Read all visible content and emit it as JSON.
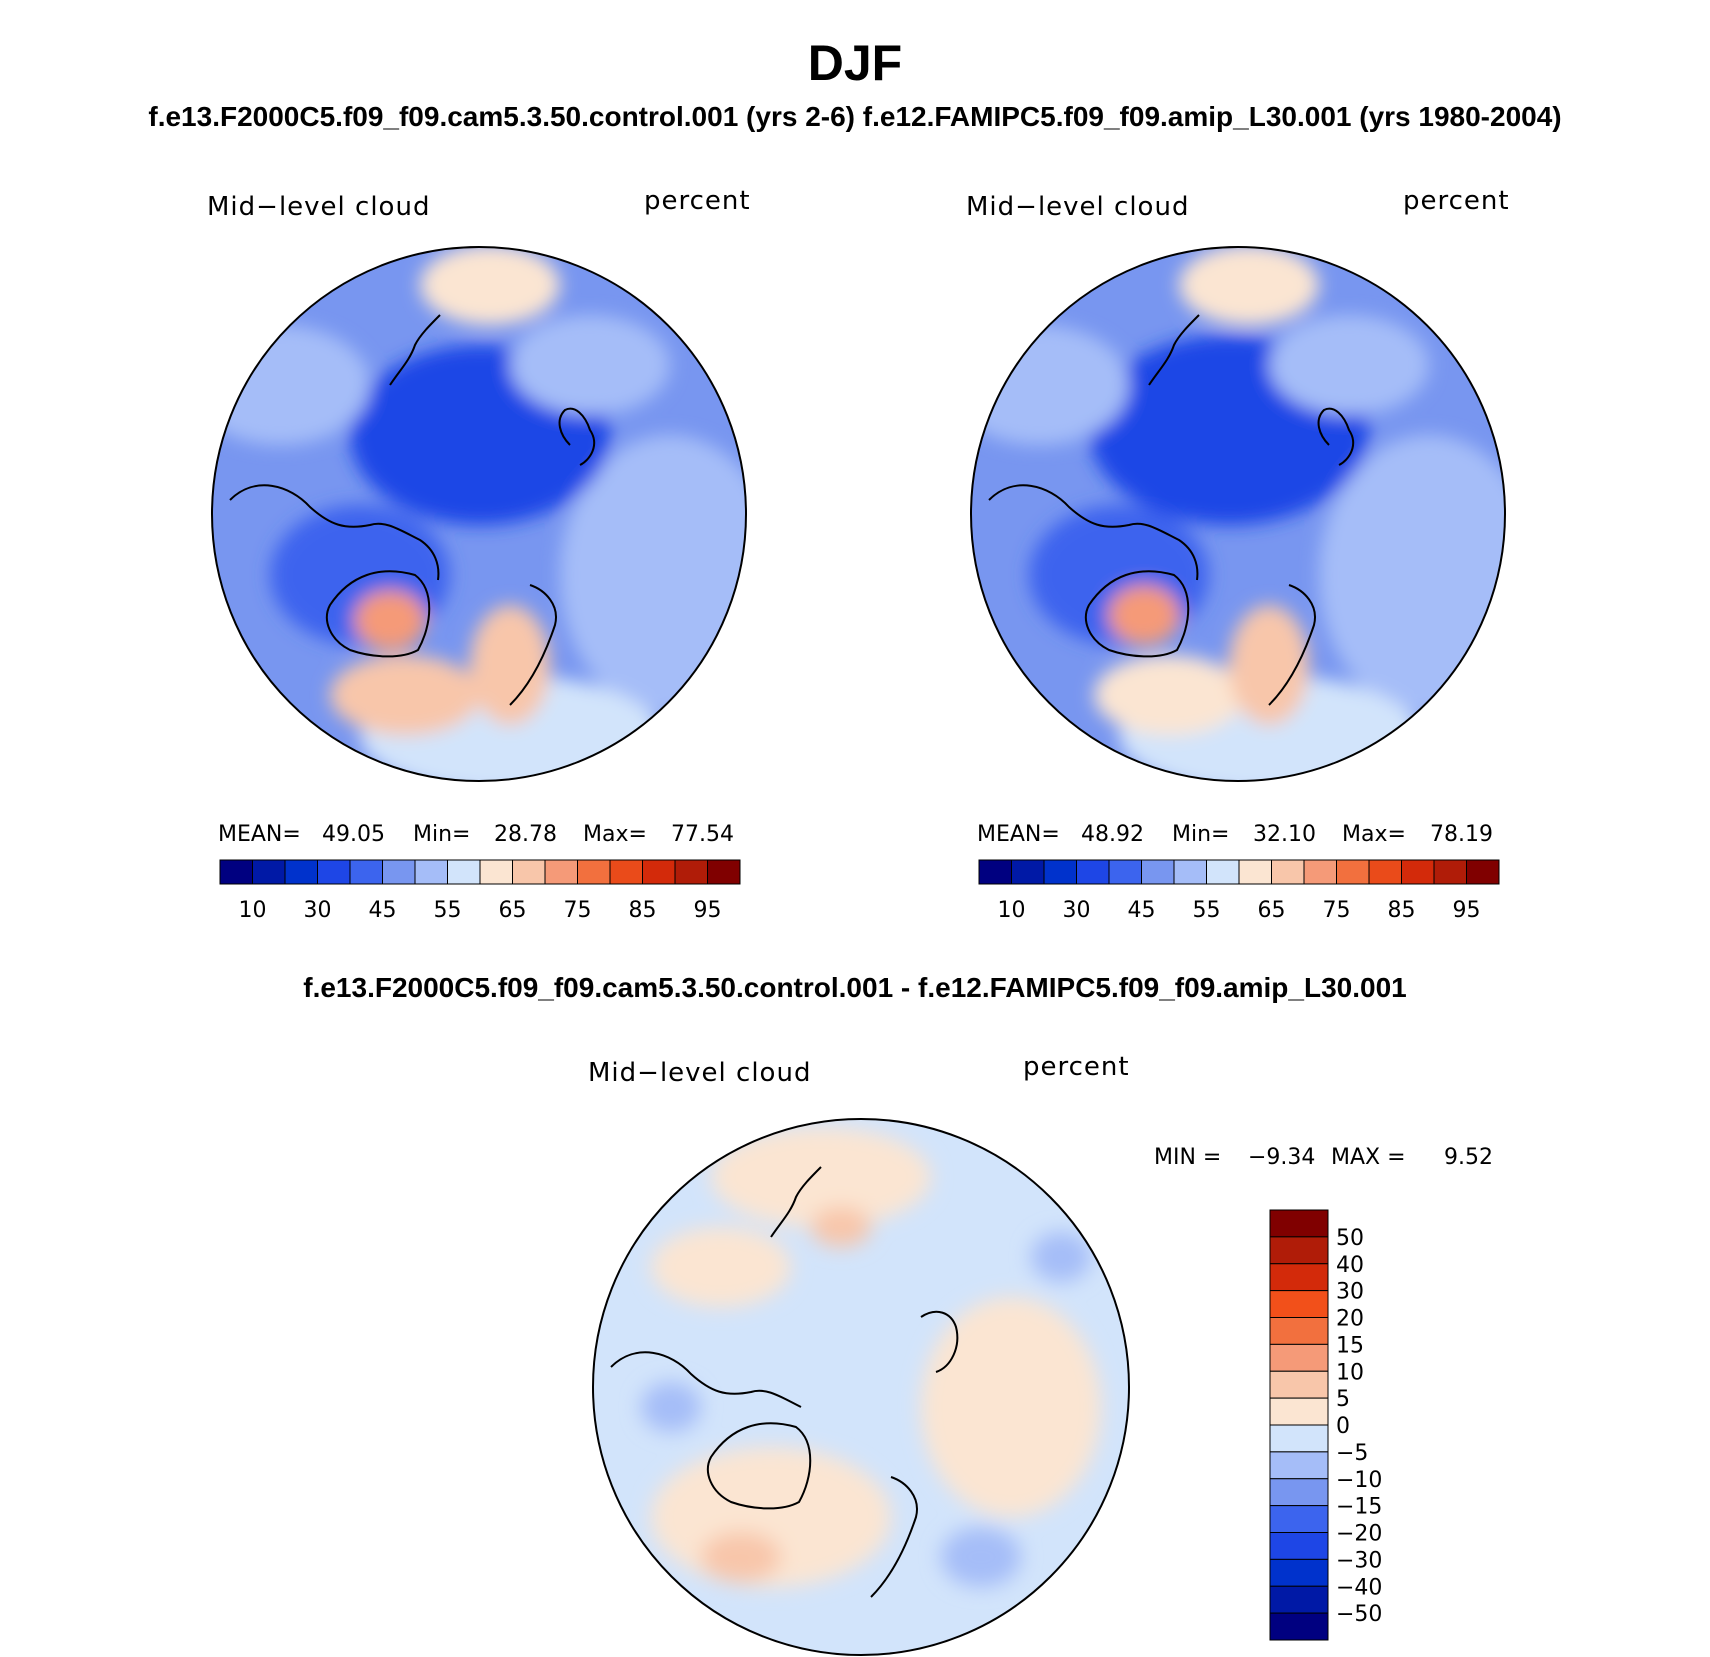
{
  "title": "DJF",
  "subtitle_top": "f.e13.F2000C5.f09_f09.cam5.3.50.control.001 (yrs 2-6)  f.e12.FAMIPC5.f09_f09.amip_L30.001 (yrs 1980-2004)",
  "subtitle_diff": "f.e13.F2000C5.f09_f09.cam5.3.50.control.001 - f.e12.FAMIPC5.f09_f09.amip_L30.001",
  "panels": [
    {
      "variable": "Mid−level cloud",
      "units": "percent",
      "mean_label": "MEAN=",
      "mean": "49.05",
      "min_label": "Min=",
      "min": "28.78",
      "max_label": "Max=",
      "max": "77.54"
    },
    {
      "variable": "Mid−level cloud",
      "units": "percent",
      "mean_label": "MEAN=",
      "mean": "48.92",
      "min_label": "Min=",
      "min": "32.10",
      "max_label": "Max=",
      "max": "78.19"
    }
  ],
  "diff_panel": {
    "variable": "Mid−level cloud",
    "units": "percent",
    "min_label": "MIN =",
    "min": "−9.34",
    "max_label": "MAX =",
    "max": "9.52"
  },
  "chart_data": [
    {
      "type": "heatmap",
      "title": "Mid-level cloud (control.001, yrs 2-6)",
      "units": "percent",
      "projection": "north polar stereographic",
      "mean": 49.05,
      "min": 28.78,
      "max": 77.54,
      "colorbar_tick_labels": [
        "10",
        "30",
        "45",
        "55",
        "65",
        "75",
        "85",
        "95"
      ],
      "colorbar_levels": [
        5,
        10,
        20,
        30,
        40,
        45,
        50,
        55,
        60,
        65,
        70,
        75,
        80,
        85,
        90,
        95
      ],
      "colors": [
        "#000080",
        "#0019A6",
        "#0032CC",
        "#1E46E6",
        "#3C64EE",
        "#7896F0",
        "#A5BDF8",
        "#D2E4FB",
        "#FBE5D2",
        "#F8C6AA",
        "#F59A78",
        "#F2703E",
        "#EA4B1A",
        "#D32A0A",
        "#B01C08",
        "#800000"
      ]
    },
    {
      "type": "heatmap",
      "title": "Mid-level cloud (amip_L30.001, yrs 1980-2004)",
      "units": "percent",
      "projection": "north polar stereographic",
      "mean": 48.92,
      "min": 32.1,
      "max": 78.19,
      "colorbar_tick_labels": [
        "10",
        "30",
        "45",
        "55",
        "65",
        "75",
        "85",
        "95"
      ],
      "colorbar_levels": [
        5,
        10,
        20,
        30,
        40,
        45,
        50,
        55,
        60,
        65,
        70,
        75,
        80,
        85,
        90,
        95
      ],
      "colors": [
        "#000080",
        "#0019A6",
        "#0032CC",
        "#1E46E6",
        "#3C64EE",
        "#7896F0",
        "#A5BDF8",
        "#D2E4FB",
        "#FBE5D2",
        "#F8C6AA",
        "#F59A78",
        "#F2703E",
        "#EA4B1A",
        "#D32A0A",
        "#B01C08",
        "#800000"
      ]
    },
    {
      "type": "heatmap",
      "title": "Mid-level cloud difference (control.001 - amip_L30.001)",
      "units": "percent",
      "projection": "north polar stereographic",
      "min": -9.34,
      "max": 9.52,
      "colorbar_tick_labels": [
        "50",
        "40",
        "30",
        "20",
        "15",
        "10",
        "5",
        "0",
        "−5",
        "−10",
        "−15",
        "−20",
        "−30",
        "−40",
        "−50"
      ],
      "colors": [
        "#800000",
        "#B01C08",
        "#D32A0A",
        "#F2501A",
        "#F2703E",
        "#F59A78",
        "#F8C6AA",
        "#FBE5D2",
        "#D2E4FB",
        "#A5BDF8",
        "#7896F0",
        "#3C64EE",
        "#1E46E6",
        "#0032CC",
        "#0019A6",
        "#000080"
      ]
    }
  ]
}
